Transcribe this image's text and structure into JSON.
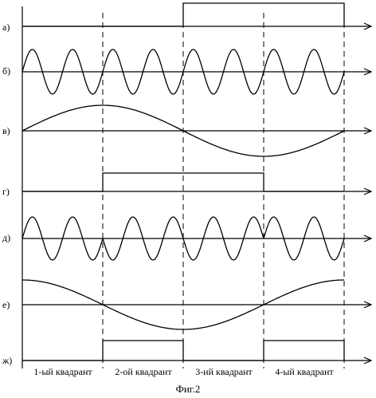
{
  "caption": "Фиг.2",
  "row_labels": [
    "а)",
    "б)",
    "в)",
    "г)",
    "д)",
    "е)",
    "ж)"
  ],
  "quadrants": [
    "1-ый квадрант",
    "2-ой квадрант",
    "3-ий квадрант",
    "4-ый квадрант"
  ],
  "signals": {
    "a": {
      "type": "pulse",
      "levels": [
        0,
        0,
        1,
        1
      ]
    },
    "b": {
      "type": "sine",
      "periods_per_quadrant": 2,
      "phase_inversion_at_quadrant_boundaries": [
        false,
        false,
        false
      ]
    },
    "v": {
      "type": "cosine_envelope",
      "periods_total": 1
    },
    "g": {
      "type": "pulse",
      "levels": [
        0,
        1,
        1,
        0
      ]
    },
    "d": {
      "type": "sine",
      "periods_per_quadrant": 2,
      "phase_inversion_at_quadrant_boundaries": [
        true,
        false,
        true
      ]
    },
    "e": {
      "type": "sine_envelope",
      "periods_total": 1
    },
    "zh": {
      "type": "pulse",
      "levels": [
        0,
        1,
        0,
        1
      ]
    }
  },
  "colors": {
    "stroke": "#000000",
    "background": "#ffffff"
  }
}
